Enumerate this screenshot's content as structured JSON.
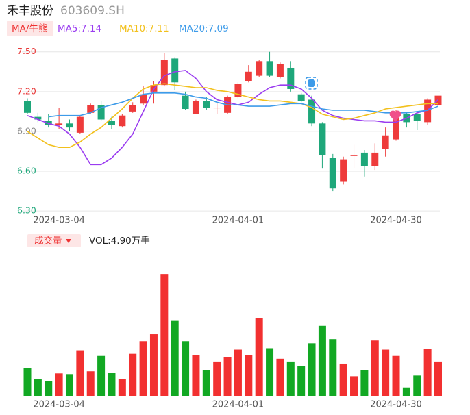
{
  "header": {
    "title": "禾丰股份",
    "code": "603609.SH"
  },
  "chart_data": [
    {
      "type": "candlestick",
      "legend_button": "MA/牛熊",
      "categories": [
        null,
        null,
        null,
        "2024-03-04",
        null,
        null,
        null,
        null,
        null,
        null,
        null,
        null,
        null,
        null,
        null,
        null,
        null,
        null,
        null,
        null,
        "2024-04-01",
        null,
        null,
        null,
        null,
        null,
        null,
        null,
        null,
        null,
        null,
        null,
        null,
        null,
        null,
        "2024-04-30",
        null,
        null,
        null,
        null
      ],
      "open": [
        7.13,
        7.01,
        6.98,
        6.95,
        6.96,
        6.89,
        7.04,
        7.1,
        6.98,
        6.94,
        7.05,
        7.11,
        7.2,
        7.25,
        7.45,
        7.17,
        7.03,
        7.13,
        7.08,
        7.04,
        7.16,
        7.28,
        7.32,
        7.43,
        7.31,
        7.38,
        7.18,
        7.14,
        6.96,
        6.7,
        6.52,
        6.72,
        6.74,
        6.64,
        6.77,
        6.84,
        7.03,
        7.03,
        6.97,
        7.1
      ],
      "high": [
        7.15,
        7.04,
        7.03,
        7.08,
        6.99,
        7.02,
        7.11,
        7.13,
        7.01,
        7.03,
        7.12,
        7.24,
        7.28,
        7.49,
        7.46,
        7.2,
        7.14,
        7.16,
        7.12,
        7.17,
        7.27,
        7.4,
        7.44,
        7.5,
        7.42,
        7.43,
        7.19,
        7.17,
        6.97,
        6.73,
        6.71,
        6.8,
        6.76,
        6.81,
        6.93,
        7.06,
        7.04,
        7.04,
        7.15,
        7.28
      ],
      "low": [
        7.03,
        6.97,
        6.93,
        6.92,
        6.9,
        6.88,
        7.03,
        6.98,
        6.92,
        6.93,
        7.04,
        7.1,
        7.11,
        7.24,
        7.21,
        7.06,
        7.03,
        7.06,
        7.03,
        7.03,
        7.15,
        7.27,
        7.31,
        7.31,
        7.3,
        7.2,
        7.12,
        6.94,
        6.62,
        6.45,
        6.5,
        6.62,
        6.56,
        6.61,
        6.71,
        6.83,
        6.93,
        6.91,
        6.95,
        7.09
      ],
      "close": [
        7.04,
        6.99,
        6.95,
        6.96,
        6.93,
        7.01,
        7.1,
        6.99,
        6.95,
        7.02,
        7.1,
        7.18,
        7.25,
        7.44,
        7.27,
        7.07,
        7.13,
        7.08,
        7.08,
        7.16,
        7.26,
        7.35,
        7.43,
        7.32,
        7.41,
        7.22,
        7.13,
        6.96,
        6.72,
        6.47,
        6.69,
        6.72,
        6.64,
        6.74,
        6.87,
        7.04,
        6.97,
        6.98,
        7.14,
        7.17
      ],
      "up_color": "#ee3b3b",
      "down_color": "#1ea77a",
      "series": [
        {
          "name": "MA5:7.14",
          "color": "#9a3cf0",
          "values": [
            7.02,
            6.99,
            6.96,
            6.94,
            6.88,
            6.78,
            6.65,
            6.65,
            6.7,
            6.78,
            6.88,
            7.05,
            7.22,
            7.32,
            7.35,
            7.36,
            7.3,
            7.2,
            7.14,
            7.12,
            7.1,
            7.12,
            7.18,
            7.23,
            7.25,
            7.25,
            7.22,
            7.15,
            7.06,
            7.02,
            7.0,
            6.99,
            6.98,
            6.98,
            6.97,
            6.97,
            7.0,
            7.04,
            7.06,
            7.14
          ]
        },
        {
          "name": "MA10:7.11",
          "color": "#f2c01c",
          "values": [
            6.9,
            6.85,
            6.8,
            6.78,
            6.78,
            6.82,
            6.88,
            6.93,
            7.0,
            7.07,
            7.15,
            7.22,
            7.25,
            7.26,
            7.25,
            7.24,
            7.23,
            7.23,
            7.21,
            7.2,
            7.18,
            7.16,
            7.14,
            7.13,
            7.13,
            7.12,
            7.11,
            7.08,
            7.03,
            7.01,
            6.99,
            7.0,
            7.02,
            7.04,
            7.07,
            7.08,
            7.09,
            7.1,
            7.11,
            7.11
          ]
        },
        {
          "name": "MA20:7.09",
          "color": "#3d9be9",
          "values": [
            null,
            null,
            7.01,
            7.02,
            7.02,
            7.02,
            7.04,
            7.08,
            7.1,
            7.12,
            7.15,
            7.18,
            7.19,
            7.19,
            7.19,
            7.18,
            7.16,
            7.15,
            7.12,
            7.1,
            7.1,
            7.09,
            7.09,
            7.09,
            7.1,
            7.11,
            7.11,
            7.09,
            7.07,
            7.06,
            7.06,
            7.06,
            7.06,
            7.05,
            7.04,
            7.04,
            7.04,
            7.05,
            7.06,
            7.09
          ]
        }
      ],
      "ylim": [
        6.28,
        7.54
      ],
      "yticks": [
        {
          "value": 7.5,
          "label": "7.50"
        },
        {
          "value": 7.2,
          "label": "7.20"
        },
        {
          "value": 6.9,
          "label": "6.90"
        },
        {
          "value": 6.6,
          "label": "6.60"
        },
        {
          "value": 6.3,
          "label": "6.30"
        }
      ],
      "ytick_colors": [
        "#e83a3a",
        "#e83a3a",
        "#888888",
        "#1ea77a",
        "#1ea77a"
      ],
      "grid": true
    },
    {
      "type": "bar",
      "title": "成交量",
      "legend_label": "VOL:4.90万手",
      "values": [
        4.0,
        2.4,
        2.1,
        3.2,
        3.1,
        6.5,
        3.5,
        5.7,
        3.3,
        2.4,
        6.0,
        7.8,
        8.8,
        17.4,
        10.7,
        7.8,
        5.8,
        3.7,
        4.9,
        5.5,
        6.6,
        5.8,
        11.1,
        6.8,
        5.3,
        4.9,
        4.3,
        7.5,
        10.0,
        8.1,
        4.6,
        2.8,
        3.7,
        7.9,
        6.6,
        5.7,
        1.2,
        2.9,
        6.7,
        4.9
      ],
      "up_color": "#f23030",
      "down_color": "#12a823",
      "ylim": [
        0,
        18
      ]
    }
  ]
}
